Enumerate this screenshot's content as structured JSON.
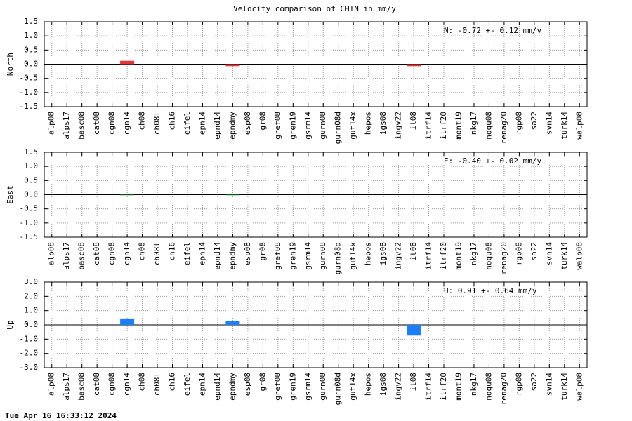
{
  "title": "Velocity comparison of CHTN in mm/y",
  "footer": "Tue Apr 16 16:33:12 2024",
  "chart_data": [
    {
      "type": "bar",
      "ylabel": "North",
      "annotation": "N:  -0.72 +-  0.12 mm/y",
      "categories": [
        "alp08",
        "alps17",
        "basc08",
        "cat08",
        "cgn08",
        "cgn14",
        "ch08",
        "ch08l",
        "ch16",
        "eifel",
        "epn14",
        "epnd14",
        "epndmy",
        "esp08",
        "gr08",
        "gref08",
        "gren19",
        "gsrm14",
        "gurn08",
        "gurn08d",
        "gut14x",
        "hepos",
        "igs08",
        "ingv22",
        "it08",
        "itrf14",
        "itrf20",
        "mont19",
        "nkg17",
        "noqu08",
        "renag20",
        "rgp08",
        "sa22",
        "svn14",
        "turk14",
        "walp08"
      ],
      "values": [
        0,
        0,
        0,
        0,
        0,
        0.12,
        0,
        0,
        0,
        0,
        0,
        0,
        -0.07,
        0,
        0,
        0,
        0,
        0,
        0,
        0,
        0,
        0,
        0,
        0,
        -0.07,
        0,
        0,
        0,
        0,
        0,
        0,
        0,
        0,
        0,
        0,
        0
      ],
      "color": "#e03838",
      "ylim": [
        -1.5,
        1.5
      ],
      "yticks": [
        -1.5,
        {
          "value": -1,
          "label": "-1.0"
        },
        -0.5,
        {
          "value": 0,
          "label": "0.0"
        },
        0.5,
        {
          "value": 1,
          "label": "1.0"
        },
        1.5
      ],
      "grid": true
    },
    {
      "type": "bar",
      "ylabel": "East",
      "annotation": "E:  -0.40 +-  0.02 mm/y",
      "categories": [
        "alp08",
        "alps17",
        "basc08",
        "cat08",
        "cgn08",
        "cgn14",
        "ch08",
        "ch08l",
        "ch16",
        "eifel",
        "epn14",
        "epnd14",
        "epndmy",
        "esp08",
        "gr08",
        "gref08",
        "gren19",
        "gsrm14",
        "gurn08",
        "gurn08d",
        "gut14x",
        "hepos",
        "igs08",
        "ingv22",
        "it08",
        "itrf14",
        "itrf20",
        "mont19",
        "nkg17",
        "noqu08",
        "renag20",
        "rgp08",
        "sa22",
        "svn14",
        "turk14",
        "walp08"
      ],
      "values": [
        0,
        0,
        0,
        0,
        0,
        -0.02,
        0,
        0,
        0,
        0,
        0,
        0,
        -0.02,
        0,
        0,
        0,
        0,
        0,
        0,
        0,
        0,
        0,
        0,
        0,
        0,
        0,
        0,
        0,
        0,
        0,
        0,
        0,
        0,
        0,
        0,
        0
      ],
      "color": "#20a030",
      "ylim": [
        -1.5,
        1.5
      ],
      "yticks": [
        -1.5,
        {
          "value": -1,
          "label": "-1.0"
        },
        -0.5,
        {
          "value": 0,
          "label": "0.0"
        },
        0.5,
        {
          "value": 1,
          "label": "1.0"
        },
        1.5
      ],
      "grid": true
    },
    {
      "type": "bar",
      "ylabel": "Up",
      "annotation": "U:   0.91 +-  0.64 mm/y",
      "categories": [
        "alp08",
        "alps17",
        "basc08",
        "cat08",
        "cgn08",
        "cgn14",
        "ch08",
        "ch08l",
        "ch16",
        "eifel",
        "epn14",
        "epnd14",
        "epndmy",
        "esp08",
        "gr08",
        "gref08",
        "gren19",
        "gsrm14",
        "gurn08",
        "gurn08d",
        "gut14x",
        "hepos",
        "igs08",
        "ingv22",
        "it08",
        "itrf14",
        "itrf20",
        "mont19",
        "nkg17",
        "noqu08",
        "renag20",
        "rgp08",
        "sa22",
        "svn14",
        "turk14",
        "walp08"
      ],
      "values": [
        0,
        0,
        0,
        0,
        0,
        0.45,
        0,
        0,
        0,
        0,
        0,
        0,
        0.25,
        0,
        0,
        0,
        0,
        0,
        0,
        0,
        0,
        0,
        0,
        0,
        -0.75,
        0,
        0,
        0,
        0,
        0,
        0,
        0,
        0,
        0,
        0,
        0
      ],
      "color": "#1a80ff",
      "ylim": [
        -3,
        3
      ],
      "yticks": [
        {
          "value": -3,
          "label": "-3.0"
        },
        {
          "value": -2,
          "label": "-2.0"
        },
        {
          "value": -1,
          "label": "-1.0"
        },
        {
          "value": 0,
          "label": "0.0"
        },
        {
          "value": 1,
          "label": "1.0"
        },
        {
          "value": 2,
          "label": "2.0"
        },
        {
          "value": 3,
          "label": "3.0"
        }
      ],
      "grid": true
    }
  ]
}
